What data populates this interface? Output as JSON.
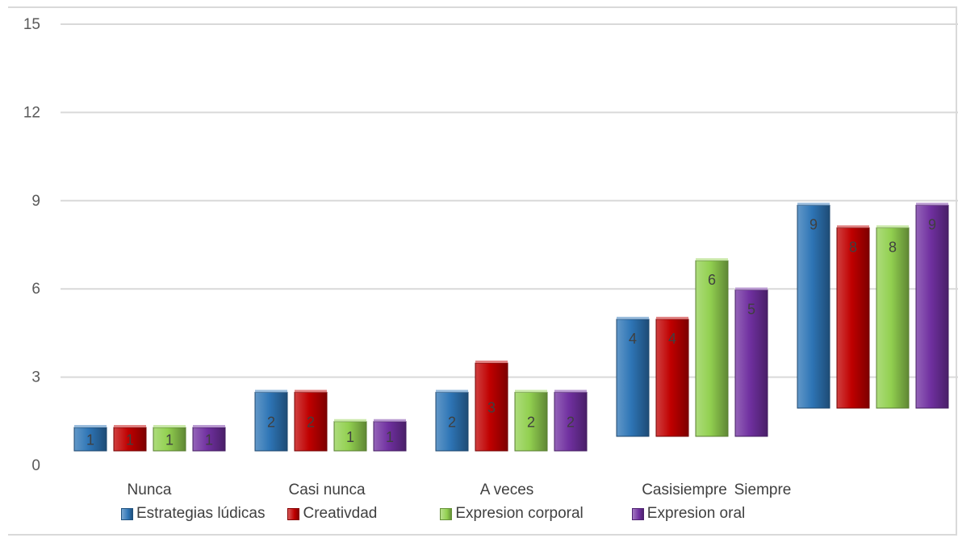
{
  "chart_data": {
    "type": "bar",
    "title": "",
    "xlabel": "",
    "ylabel": "",
    "ylim": [
      0,
      15
    ],
    "yticks": [
      0,
      3,
      6,
      9,
      12,
      15
    ],
    "grid": true,
    "legend_position": "bottom",
    "categories": [
      "Nunca",
      "Casi nunca",
      "A veces",
      "Casisiempre",
      "Siempre"
    ],
    "series": [
      {
        "name": "Estrategias lúdicas",
        "color": "#2e75b6",
        "values": [
          1,
          2,
          2,
          4,
          9
        ]
      },
      {
        "name": "Creativdad",
        "color": "#c00000",
        "values": [
          1,
          2,
          3,
          4,
          8
        ]
      },
      {
        "name": "Expresion corporal",
        "color": "#92d050",
        "values": [
          1,
          1,
          2,
          6,
          8
        ]
      },
      {
        "name": "Expresion oral",
        "color": "#7030a0",
        "values": [
          1,
          1,
          2,
          5,
          9
        ]
      }
    ]
  }
}
